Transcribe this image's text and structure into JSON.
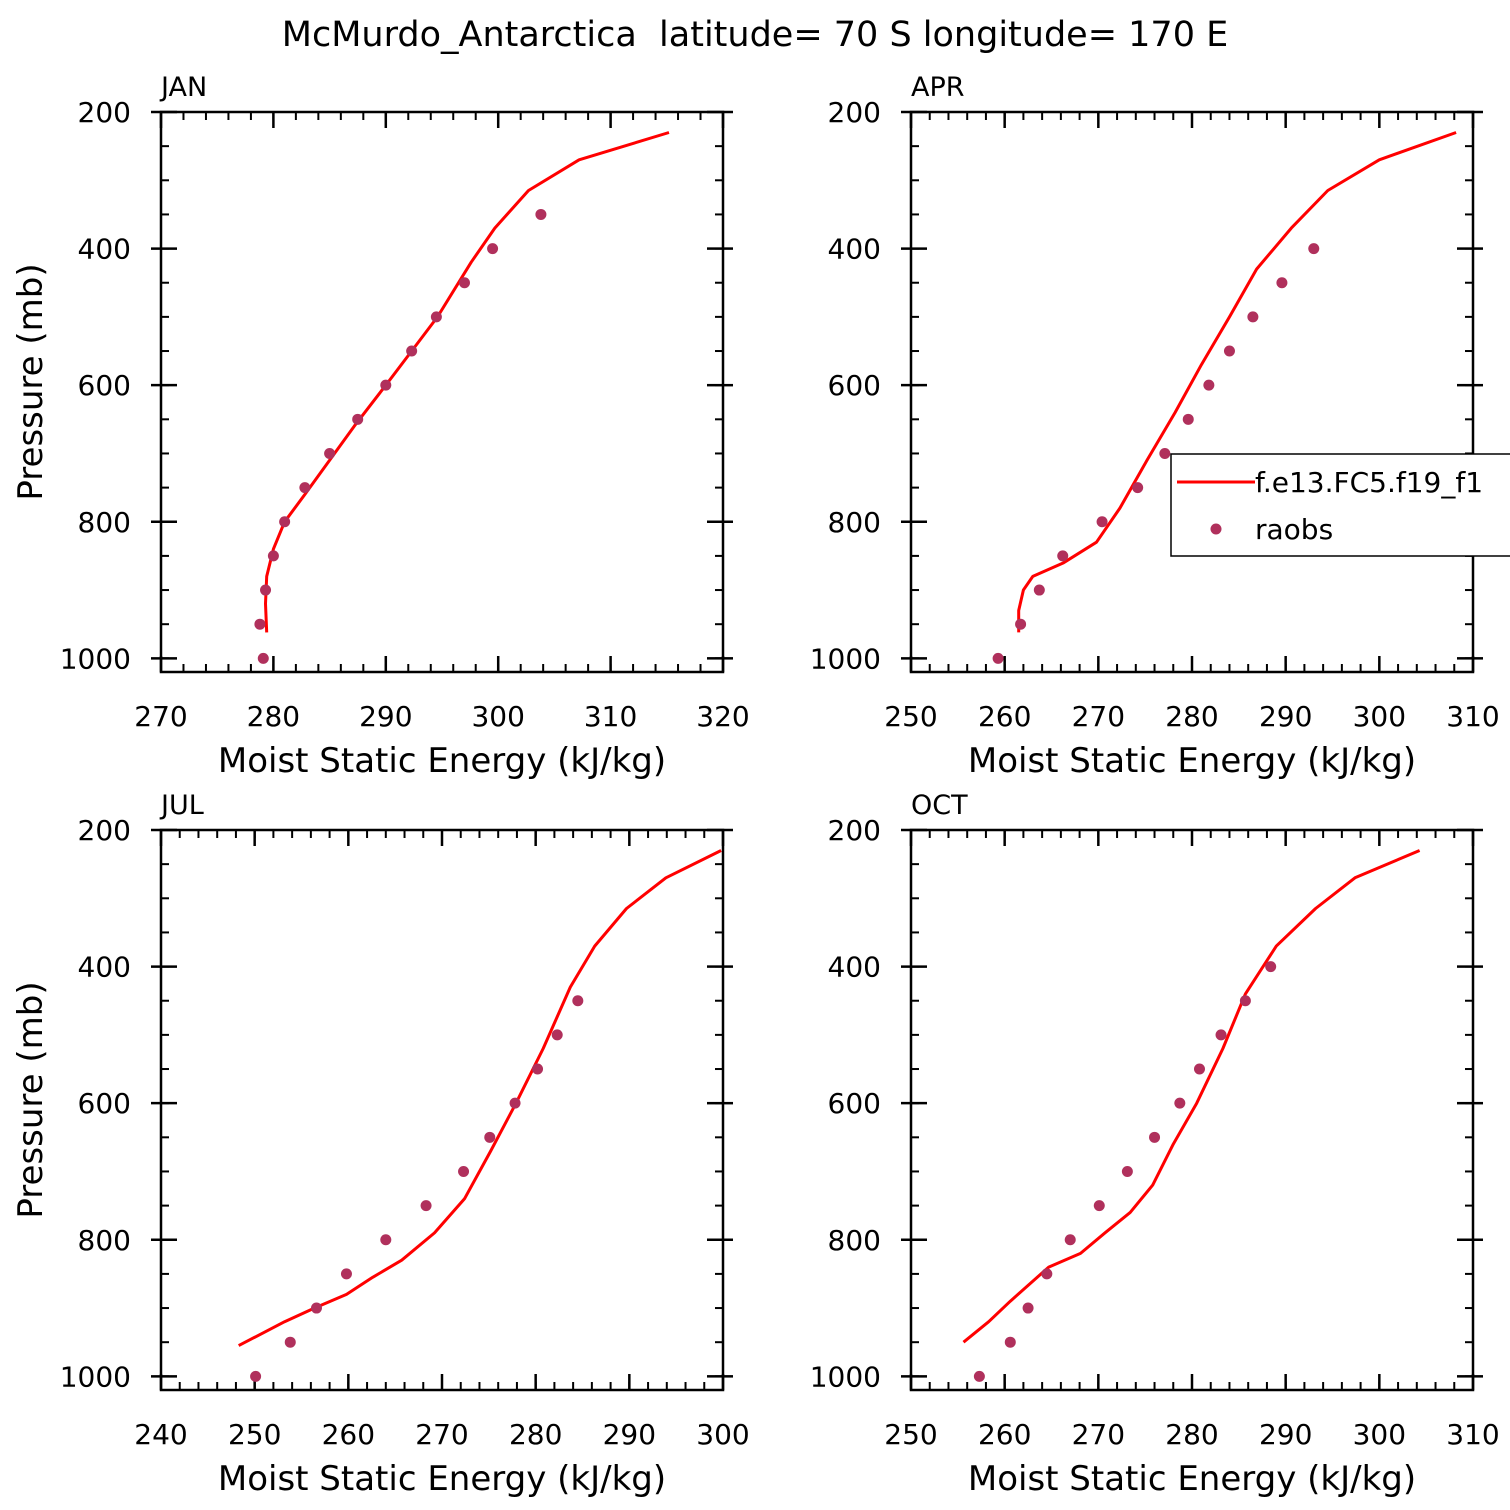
{
  "title": "McMurdo_Antarctica  latitude= 70 S longitude= 170 E",
  "colors": {
    "model": "#ff0000",
    "obs": "#b0305c",
    "axis": "#000000"
  },
  "legend": {
    "model_label": "f.e13.FC5.f19_f1",
    "obs_label": "raobs"
  },
  "chart_data": [
    {
      "type": "line",
      "panel_label": "JAN",
      "xlabel": "Moist Static Energy (kJ/kg)",
      "ylabel": "Pressure (mb)",
      "xlim": [
        270,
        320
      ],
      "ylim": [
        200,
        1020
      ],
      "xticks": [
        270,
        280,
        290,
        300,
        310,
        320
      ],
      "yticks": [
        200,
        400,
        600,
        800,
        1000
      ],
      "series": [
        {
          "name": "f.e13.FC5.f19_f1",
          "style": "line",
          "x": [
            315.2,
            307.2,
            302.7,
            299.7,
            297.6,
            294.6,
            292.3,
            290.0,
            287.2,
            285.0,
            282.8,
            281.0,
            280.0,
            279.4,
            279.3,
            279.4
          ],
          "y": [
            230,
            270,
            315,
            370,
            420,
            500,
            550,
            600,
            660,
            710,
            760,
            800,
            840,
            880,
            920,
            962
          ]
        },
        {
          "name": "raobs",
          "style": "scatter",
          "x": [
            303.8,
            299.5,
            297.0,
            294.5,
            292.3,
            290.0,
            287.5,
            285.0,
            282.8,
            281.0,
            280.0,
            279.3,
            278.8,
            279.1
          ],
          "y": [
            350,
            400,
            450,
            500,
            550,
            600,
            650,
            700,
            750,
            800,
            850,
            900,
            950,
            1000
          ]
        }
      ]
    },
    {
      "type": "line",
      "panel_label": "APR",
      "xlabel": "Moist Static Energy (kJ/kg)",
      "ylabel": "",
      "xlim": [
        250,
        310
      ],
      "ylim": [
        200,
        1020
      ],
      "xticks": [
        250,
        260,
        270,
        280,
        290,
        300,
        310
      ],
      "yticks": [
        200,
        400,
        600,
        800,
        1000
      ],
      "series": [
        {
          "name": "f.e13.FC5.f19_f1",
          "style": "line",
          "x": [
            308.2,
            300.0,
            294.5,
            290.6,
            286.9,
            284.0,
            281.0,
            278.2,
            275.2,
            272.3,
            269.8,
            266.3,
            263.0,
            262.0,
            261.5,
            261.5
          ],
          "y": [
            230,
            270,
            315,
            370,
            430,
            500,
            570,
            640,
            710,
            780,
            830,
            860,
            880,
            900,
            930,
            962
          ]
        },
        {
          "name": "raobs",
          "style": "scatter",
          "x": [
            293.0,
            289.6,
            286.5,
            284.0,
            281.8,
            279.6,
            277.1,
            274.2,
            270.4,
            266.2,
            263.7,
            261.7,
            259.3
          ],
          "y": [
            400,
            450,
            500,
            550,
            600,
            650,
            700,
            750,
            800,
            850,
            900,
            950,
            1000
          ]
        }
      ]
    },
    {
      "type": "line",
      "panel_label": "JUL",
      "xlabel": "Moist Static Energy (kJ/kg)",
      "ylabel": "Pressure (mb)",
      "xlim": [
        240,
        300
      ],
      "ylim": [
        200,
        1020
      ],
      "xticks": [
        240,
        250,
        260,
        270,
        280,
        290,
        300
      ],
      "yticks": [
        200,
        400,
        600,
        800,
        1000
      ],
      "series": [
        {
          "name": "f.e13.FC5.f19_f1",
          "style": "line",
          "x": [
            299.8,
            293.9,
            289.7,
            286.3,
            283.7,
            280.8,
            277.9,
            275.2,
            272.4,
            269.2,
            265.7,
            262.6,
            259.8,
            256.4,
            253.2,
            248.3
          ],
          "y": [
            230,
            270,
            315,
            370,
            430,
            520,
            600,
            670,
            740,
            790,
            830,
            855,
            880,
            900,
            920,
            955
          ]
        },
        {
          "name": "raobs",
          "style": "scatter",
          "x": [
            284.5,
            282.3,
            280.2,
            277.8,
            275.1,
            272.3,
            268.3,
            264.0,
            259.8,
            256.6,
            253.8,
            250.1
          ],
          "y": [
            450,
            500,
            550,
            600,
            650,
            700,
            750,
            800,
            850,
            900,
            950,
            1000
          ]
        }
      ]
    },
    {
      "type": "line",
      "panel_label": "OCT",
      "xlabel": "Moist Static Energy (kJ/kg)",
      "ylabel": "",
      "xlim": [
        250,
        310
      ],
      "ylim": [
        200,
        1020
      ],
      "xticks": [
        250,
        260,
        270,
        280,
        290,
        300,
        310
      ],
      "yticks": [
        200,
        400,
        600,
        800,
        1000
      ],
      "series": [
        {
          "name": "f.e13.FC5.f19_f1",
          "style": "line",
          "x": [
            304.3,
            297.4,
            293.2,
            289.0,
            285.7,
            283.3,
            280.5,
            278.0,
            275.8,
            273.4,
            270.7,
            268.1,
            264.7,
            260.6,
            258.3,
            255.6
          ],
          "y": [
            230,
            270,
            315,
            370,
            440,
            520,
            600,
            660,
            720,
            760,
            790,
            820,
            840,
            890,
            920,
            950
          ]
        },
        {
          "name": "raobs",
          "style": "scatter",
          "x": [
            288.4,
            285.7,
            283.1,
            280.8,
            278.7,
            276.0,
            273.1,
            270.1,
            267.0,
            264.5,
            262.5,
            260.6,
            257.3
          ],
          "y": [
            400,
            450,
            500,
            550,
            600,
            650,
            700,
            750,
            800,
            850,
            900,
            950,
            1000
          ]
        }
      ]
    }
  ]
}
